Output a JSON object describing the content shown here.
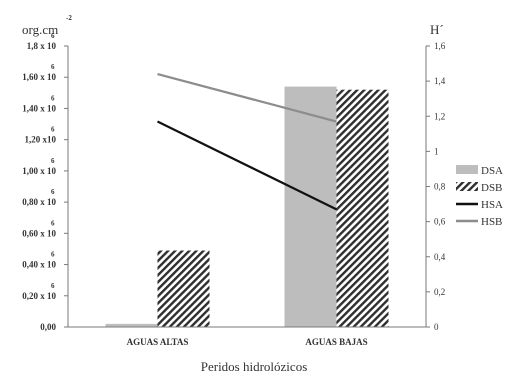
{
  "chart_data": {
    "type": "bar",
    "categories": [
      "AGUAS ALTAS",
      "AGUAS BAJAS"
    ],
    "xlabel": "Peridos  hidrolózicos",
    "left_axis": {
      "label": "org.cm",
      "label_exponent": "-2",
      "ylim": [
        0,
        1.8
      ],
      "ticks": [
        {
          "value": 0,
          "text": "0,00",
          "exp": ""
        },
        {
          "value": 0.2,
          "text": "0,20 x 10",
          "exp": "6"
        },
        {
          "value": 0.4,
          "text": "0,40 x 10",
          "exp": "6"
        },
        {
          "value": 0.6,
          "text": "0,60 x 10",
          "exp": "6"
        },
        {
          "value": 0.8,
          "text": "0,80 x 10",
          "exp": "6"
        },
        {
          "value": 1.0,
          "text": "1,00 x 10",
          "exp": "6"
        },
        {
          "value": 1.2,
          "text": "1,20 x10",
          "exp": "6"
        },
        {
          "value": 1.4,
          "text": "1,40 x 10",
          "exp": "6"
        },
        {
          "value": 1.6,
          "text": "1,60 x 10",
          "exp": "6"
        },
        {
          "value": 1.8,
          "text": "1,8 x 10",
          "exp": "6"
        }
      ]
    },
    "right_axis": {
      "label": "H´",
      "ylim": [
        0,
        1.6
      ],
      "ticks": [
        "0",
        "0,2",
        "0,4",
        "0,6",
        "0,8",
        "1",
        "1,2",
        "1,4",
        "1,6"
      ]
    },
    "bar_series": [
      {
        "name": "DSA",
        "values": [
          0.02,
          1.54
        ],
        "axis": "left",
        "color": "#bdbdbd",
        "pattern": "solid"
      },
      {
        "name": "DSB",
        "values": [
          0.49,
          1.52
        ],
        "axis": "left",
        "color": "#333333",
        "pattern": "diagonal-stripes"
      }
    ],
    "line_series": [
      {
        "name": "HSA",
        "values": [
          1.17,
          0.67
        ],
        "axis": "right",
        "color": "#111111"
      },
      {
        "name": "HSB",
        "values": [
          1.44,
          1.17
        ],
        "axis": "right",
        "color": "#8c8c8c"
      }
    ],
    "legend_position": "right",
    "grid": false
  }
}
